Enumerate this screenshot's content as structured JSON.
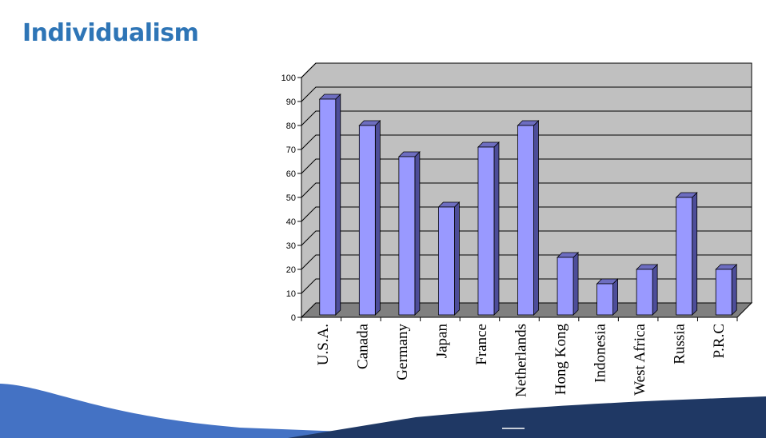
{
  "slide": {
    "title": "Individualism"
  },
  "colors": {
    "title": "#2e75b6",
    "bar_front": "#9999ff",
    "bar_side": "#4d4d99",
    "bar_top": "#6d6dc0",
    "plot_wall": "#c0c0c0",
    "plot_floor": "#808080",
    "wave_light": "#4472c4",
    "wave_dark": "#1f3864"
  },
  "chart_data": {
    "type": "bar",
    "title": "",
    "xlabel": "",
    "ylabel": "",
    "categories": [
      "U.S.A.",
      "Canada",
      "Germany",
      "Japan",
      "France",
      "Netherlands",
      "Hong Kong",
      "Indonesia",
      "West Africa",
      "Russia",
      "P.R.C"
    ],
    "values": [
      91,
      80,
      67,
      46,
      71,
      80,
      25,
      14,
      20,
      50,
      20
    ],
    "ylim": [
      0,
      100
    ],
    "yticks": [
      0,
      10,
      20,
      30,
      40,
      50,
      60,
      70,
      80,
      90,
      100
    ],
    "grid": true,
    "legend": "none",
    "style": "3d-column"
  }
}
